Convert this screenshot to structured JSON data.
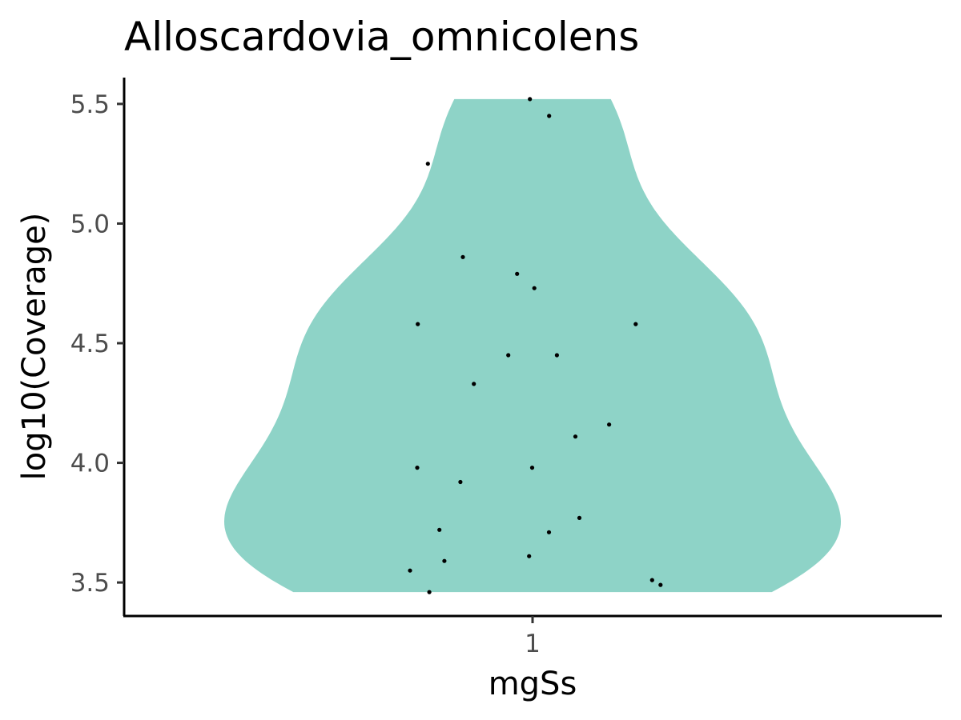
{
  "chart_data": {
    "type": "violin",
    "title": "Alloscardovia_omnicolens",
    "xlabel": "mgSs",
    "ylabel": "log10(Coverage)",
    "categories": [
      "1"
    ],
    "yticks": [
      3.5,
      4.0,
      4.5,
      5.0,
      5.5
    ],
    "ytick_labels": [
      "3.5",
      "4.0",
      "4.5",
      "5.0",
      "5.5"
    ],
    "ylim": [
      3.36,
      5.61
    ],
    "grid": false,
    "legend": "none",
    "fill_color": "#8ED3C7",
    "point_color": "#000000",
    "series": [
      {
        "category": "1",
        "values": [
          5.52,
          5.45,
          5.25,
          4.86,
          4.79,
          4.73,
          4.58,
          4.58,
          4.45,
          4.45,
          4.33,
          4.16,
          4.11,
          3.98,
          3.98,
          3.92,
          3.77,
          3.72,
          3.71,
          3.61,
          3.59,
          3.55,
          3.51,
          3.49,
          3.46
        ]
      }
    ]
  }
}
